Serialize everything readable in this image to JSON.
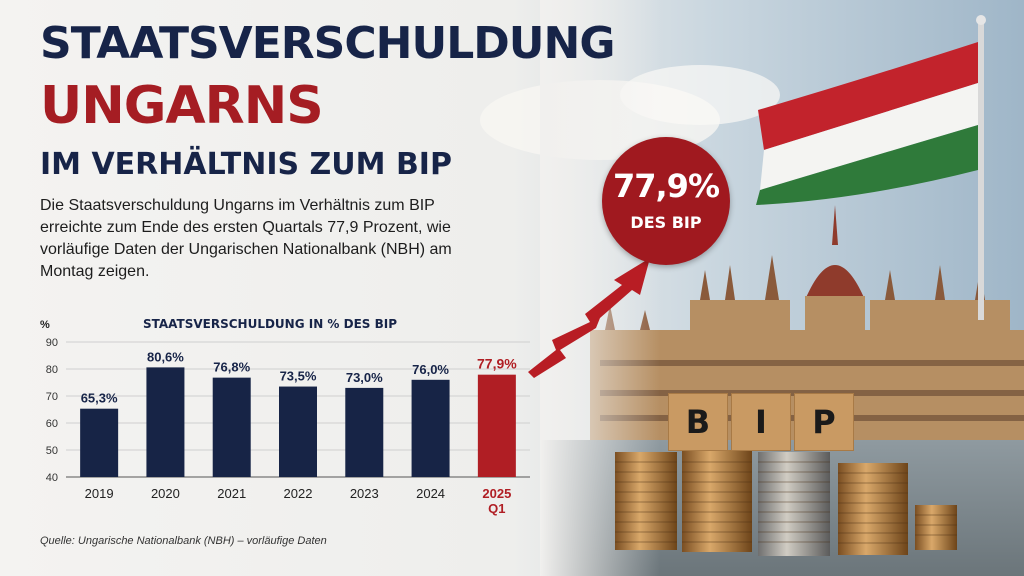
{
  "title": {
    "line1": "STAATSVERSCHULDUNG",
    "line2": "UNGARNS",
    "line3": "IM VERHÄLTNIS ZUM BIP"
  },
  "intro": "Die Staatsverschuldung Ungarns im Verhältnis zum BIP erreichte zum Ende des ersten Quartals 77,9 Prozent, wie vorläufige Daten der Ungarischen Nationalbank (NBH) am Montag zeigen.",
  "badge": {
    "value": "77,9%",
    "label": "DES BIP"
  },
  "blocks": [
    "B",
    "I",
    "P"
  ],
  "source": "Quelle: Ungarische Nationalbank (NBH) – vorläufige Daten",
  "colors": {
    "navy": "#172448",
    "red": "#a51d23",
    "bar": "#172446",
    "highlight": "#b01e24"
  },
  "chart_data": {
    "type": "bar",
    "title": "STAATSVERSCHULDUNG IN % DES BIP",
    "ylabel": "%",
    "xlabel": "",
    "ylim": [
      40,
      90
    ],
    "yticks": [
      40,
      50,
      60,
      70,
      80,
      90
    ],
    "grid": true,
    "categories": [
      "2019",
      "2020",
      "2021",
      "2022",
      "2023",
      "2024",
      "2025 Q1"
    ],
    "values": [
      65.3,
      80.6,
      76.8,
      73.5,
      73.0,
      76.0,
      77.9
    ],
    "data_labels": [
      "65,3%",
      "80,6%",
      "76,8%",
      "73,5%",
      "73,0%",
      "76,0%",
      "77,9%"
    ],
    "highlight_index": 6
  }
}
